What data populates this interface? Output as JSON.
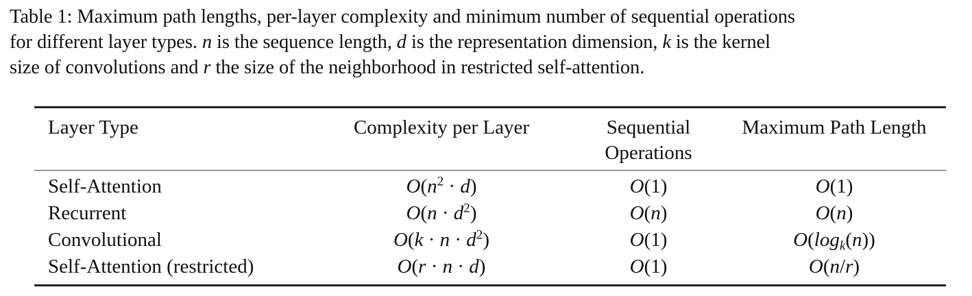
{
  "caption": {
    "lines": [
      [
        "Table 1:  Maximum path lengths, per-layer complexity and minimum number of sequential operations"
      ],
      [
        "for different layer types. ",
        {
          "m": "n"
        },
        " is the sequence length, ",
        {
          "m": "d"
        },
        " is the representation dimension, ",
        {
          "m": "k"
        },
        " is the kernel"
      ],
      [
        "size of convolutions and ",
        {
          "m": "r"
        },
        " the size of the neighborhood in restricted self-attention."
      ]
    ]
  },
  "table": {
    "headers": [
      {
        "label": "Layer Type"
      },
      {
        "label": "Complexity per Layer"
      },
      {
        "label": "Sequential Operations"
      },
      {
        "label": "Maximum Path Length"
      }
    ],
    "rows": [
      {
        "layer_type": "Self-Attention",
        "complexity": [
          {
            "m": "O"
          },
          "(",
          {
            "m": "n"
          },
          {
            "sup": "2"
          },
          " · ",
          {
            "m": "d"
          },
          ")"
        ],
        "sequential": [
          {
            "m": "O"
          },
          "(1)"
        ],
        "path_length": [
          {
            "m": "O"
          },
          "(1)"
        ]
      },
      {
        "layer_type": "Recurrent",
        "complexity": [
          {
            "m": "O"
          },
          "(",
          {
            "m": "n"
          },
          " · ",
          {
            "m": "d"
          },
          {
            "sup": "2"
          },
          ")"
        ],
        "sequential": [
          {
            "m": "O"
          },
          "(",
          {
            "m": "n"
          },
          ")"
        ],
        "path_length": [
          {
            "m": "O"
          },
          "(",
          {
            "m": "n"
          },
          ")"
        ]
      },
      {
        "layer_type": "Convolutional",
        "complexity": [
          {
            "m": "O"
          },
          "(",
          {
            "m": "k"
          },
          " · ",
          {
            "m": "n"
          },
          " · ",
          {
            "m": "d"
          },
          {
            "sup": "2"
          },
          ")"
        ],
        "sequential": [
          {
            "m": "O"
          },
          "(1)"
        ],
        "path_length": [
          {
            "m": "O"
          },
          "(",
          {
            "m": "log"
          },
          {
            "sub": "k"
          },
          "(",
          {
            "m": "n"
          },
          "))"
        ]
      },
      {
        "layer_type": "Self-Attention (restricted)",
        "complexity": [
          {
            "m": "O"
          },
          "(",
          {
            "m": "r"
          },
          " · ",
          {
            "m": "n"
          },
          " · ",
          {
            "m": "d"
          },
          ")"
        ],
        "sequential": [
          {
            "m": "O"
          },
          "(1)"
        ],
        "path_length": [
          {
            "m": "O"
          },
          "(",
          {
            "m": "n"
          },
          "/",
          {
            "m": "r"
          },
          ")"
        ]
      }
    ]
  }
}
